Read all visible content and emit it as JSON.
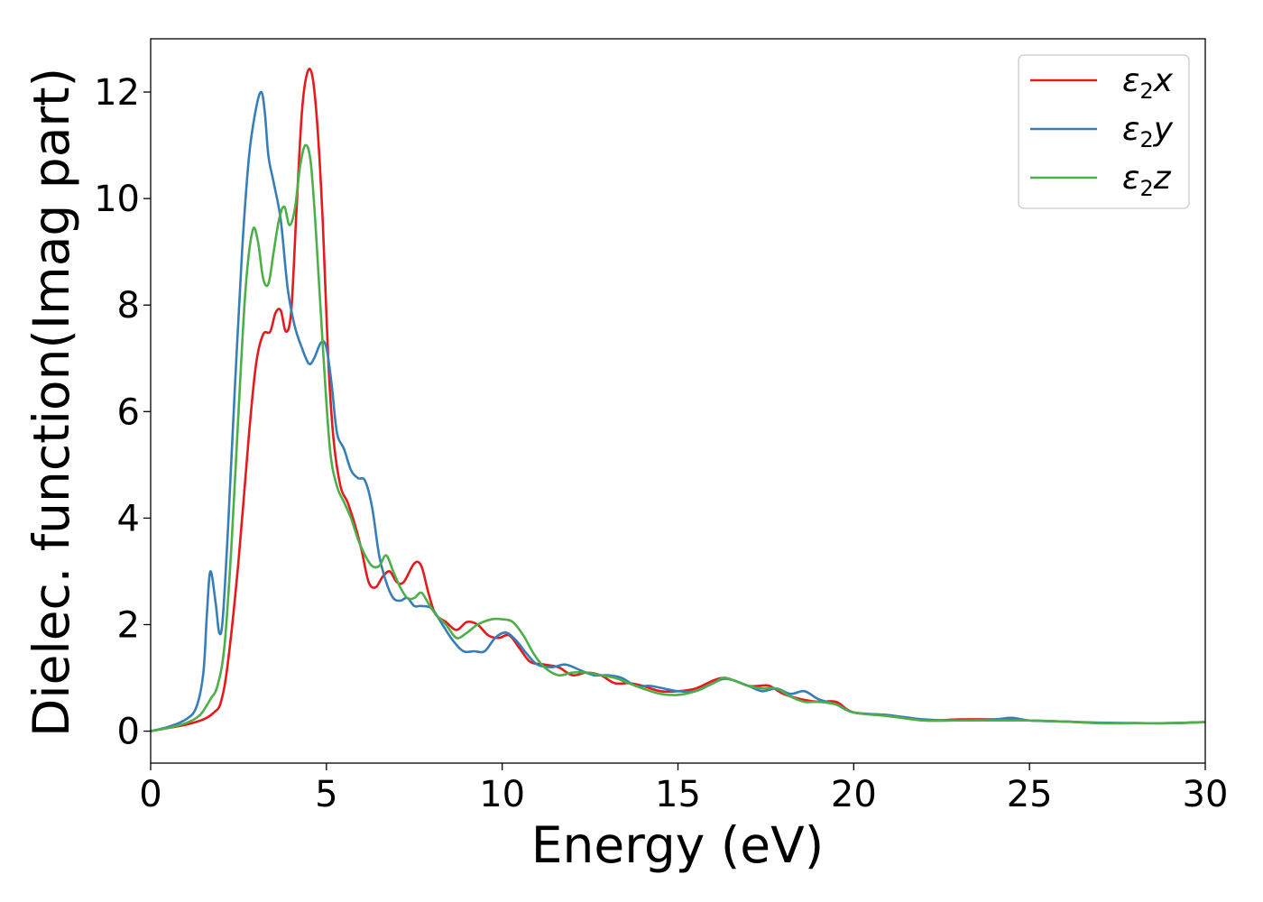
{
  "chart_data": {
    "type": "line",
    "xlabel": "Energy (eV)",
    "ylabel": "Dielec. function(Imag part)",
    "xlim": [
      0,
      30
    ],
    "ylim": [
      -0.6,
      13.0
    ],
    "xticks": [
      0,
      5,
      10,
      15,
      20,
      25,
      30
    ],
    "yticks": [
      0,
      2,
      4,
      6,
      8,
      10,
      12
    ],
    "grid": false,
    "legend_position": "top-right",
    "legend": [
      {
        "symbol": "ε",
        "sub": "2",
        "var": "x",
        "color": "#e41a1c"
      },
      {
        "symbol": "ε",
        "sub": "2",
        "var": "y",
        "color": "#377eb8"
      },
      {
        "symbol": "ε",
        "sub": "2",
        "var": "z",
        "color": "#4daf4a"
      }
    ],
    "series": [
      {
        "color": "#e41a1c",
        "x": [
          0,
          0.5,
          1.0,
          1.5,
          1.8,
          2.0,
          2.2,
          2.5,
          2.8,
          3.0,
          3.2,
          3.4,
          3.55,
          3.7,
          3.85,
          4.0,
          4.15,
          4.3,
          4.45,
          4.6,
          4.75,
          4.9,
          5.05,
          5.2,
          5.4,
          5.6,
          5.8,
          6.0,
          6.2,
          6.4,
          6.6,
          6.8,
          7.0,
          7.2,
          7.5,
          7.7,
          7.9,
          8.1,
          8.4,
          8.7,
          9.0,
          9.3,
          9.6,
          9.9,
          10.2,
          10.5,
          10.8,
          11.2,
          11.6,
          12.0,
          12.4,
          12.8,
          13.2,
          13.6,
          14.0,
          14.5,
          15.0,
          15.5,
          16.0,
          16.3,
          16.6,
          17.0,
          17.3,
          17.6,
          18.0,
          18.5,
          19.0,
          19.5,
          20.0,
          21.0,
          22.0,
          23.0,
          24.0,
          25.0,
          26.0,
          27.0,
          28.0,
          29.0,
          30.0
        ],
        "y": [
          0.0,
          0.06,
          0.12,
          0.22,
          0.35,
          0.55,
          1.3,
          3.2,
          5.6,
          6.9,
          7.45,
          7.5,
          7.85,
          7.9,
          7.5,
          7.9,
          9.8,
          11.6,
          12.35,
          12.3,
          11.3,
          9.5,
          7.0,
          5.5,
          4.6,
          4.3,
          3.9,
          3.4,
          2.8,
          2.7,
          2.9,
          3.0,
          2.8,
          2.8,
          3.15,
          3.1,
          2.6,
          2.2,
          2.05,
          1.9,
          2.05,
          2.0,
          1.8,
          1.75,
          1.8,
          1.55,
          1.3,
          1.25,
          1.2,
          1.05,
          1.1,
          1.05,
          0.9,
          0.9,
          0.85,
          0.75,
          0.75,
          0.8,
          0.95,
          1.0,
          0.95,
          0.85,
          0.85,
          0.85,
          0.7,
          0.6,
          0.55,
          0.55,
          0.35,
          0.3,
          0.2,
          0.22,
          0.22,
          0.2,
          0.18,
          0.15,
          0.15,
          0.15,
          0.17
        ]
      },
      {
        "color": "#377eb8",
        "x": [
          0,
          0.5,
          1.0,
          1.3,
          1.5,
          1.6,
          1.7,
          1.85,
          1.95,
          2.05,
          2.2,
          2.4,
          2.6,
          2.8,
          3.0,
          3.15,
          3.25,
          3.35,
          3.5,
          3.7,
          3.9,
          4.1,
          4.3,
          4.5,
          4.65,
          4.85,
          5.0,
          5.15,
          5.3,
          5.5,
          5.7,
          5.9,
          6.1,
          6.3,
          6.5,
          6.7,
          6.9,
          7.1,
          7.3,
          7.5,
          7.7,
          8.0,
          8.3,
          8.6,
          8.9,
          9.2,
          9.5,
          9.8,
          10.1,
          10.4,
          10.7,
          11.0,
          11.4,
          11.8,
          12.2,
          12.6,
          13.0,
          13.4,
          13.8,
          14.2,
          14.6,
          15.0,
          15.5,
          16.0,
          16.3,
          16.6,
          17.0,
          17.4,
          17.8,
          18.2,
          18.6,
          19.0,
          19.5,
          20.0,
          21.0,
          22.0,
          23.0,
          24.0,
          24.5,
          25.0,
          26.0,
          27.0,
          28.0,
          29.0,
          30.0
        ],
        "y": [
          0.0,
          0.08,
          0.22,
          0.45,
          1.1,
          2.2,
          3.0,
          2.4,
          1.85,
          2.1,
          3.8,
          6.5,
          9.0,
          10.8,
          11.7,
          12.0,
          11.6,
          10.8,
          10.3,
          9.6,
          8.3,
          7.6,
          7.2,
          6.9,
          7.0,
          7.3,
          7.2,
          6.5,
          5.6,
          5.3,
          4.9,
          4.75,
          4.7,
          4.2,
          3.3,
          2.8,
          2.5,
          2.45,
          2.5,
          2.35,
          2.35,
          2.3,
          2.0,
          1.7,
          1.5,
          1.5,
          1.5,
          1.75,
          1.85,
          1.7,
          1.45,
          1.25,
          1.2,
          1.25,
          1.15,
          1.05,
          1.05,
          1.0,
          0.85,
          0.85,
          0.8,
          0.75,
          0.75,
          0.9,
          0.98,
          0.95,
          0.85,
          0.75,
          0.8,
          0.7,
          0.75,
          0.6,
          0.5,
          0.35,
          0.3,
          0.22,
          0.2,
          0.22,
          0.25,
          0.2,
          0.18,
          0.16,
          0.15,
          0.15,
          0.17
        ]
      },
      {
        "color": "#4daf4a",
        "x": [
          0,
          0.5,
          1.0,
          1.4,
          1.7,
          1.9,
          2.1,
          2.3,
          2.5,
          2.7,
          2.9,
          3.05,
          3.2,
          3.35,
          3.5,
          3.65,
          3.8,
          3.95,
          4.1,
          4.25,
          4.4,
          4.55,
          4.7,
          4.9,
          5.1,
          5.3,
          5.5,
          5.7,
          5.9,
          6.1,
          6.3,
          6.5,
          6.7,
          6.9,
          7.1,
          7.3,
          7.5,
          7.7,
          7.9,
          8.1,
          8.4,
          8.7,
          9.0,
          9.3,
          9.7,
          10.0,
          10.3,
          10.6,
          10.9,
          11.2,
          11.6,
          12.0,
          12.4,
          12.8,
          13.2,
          13.6,
          14.0,
          14.5,
          15.0,
          15.5,
          16.0,
          16.3,
          16.6,
          17.0,
          17.4,
          17.8,
          18.2,
          18.6,
          19.0,
          19.5,
          20.0,
          21.0,
          22.0,
          23.0,
          24.0,
          25.0,
          26.0,
          27.0,
          28.0,
          29.0,
          30.0
        ],
        "y": [
          0.0,
          0.06,
          0.15,
          0.3,
          0.6,
          0.85,
          1.6,
          3.5,
          6.0,
          8.3,
          9.4,
          9.2,
          8.5,
          8.4,
          9.0,
          9.6,
          9.85,
          9.5,
          9.8,
          10.6,
          11.0,
          10.7,
          9.4,
          7.2,
          5.3,
          4.6,
          4.3,
          4.0,
          3.6,
          3.3,
          3.1,
          3.1,
          3.3,
          3.0,
          2.7,
          2.5,
          2.5,
          2.6,
          2.4,
          2.2,
          2.0,
          1.75,
          1.85,
          2.0,
          2.1,
          2.1,
          2.05,
          1.8,
          1.45,
          1.2,
          1.05,
          1.1,
          1.1,
          1.05,
          1.0,
          0.9,
          0.8,
          0.7,
          0.68,
          0.75,
          0.9,
          1.0,
          0.95,
          0.85,
          0.8,
          0.8,
          0.65,
          0.55,
          0.55,
          0.5,
          0.35,
          0.28,
          0.2,
          0.2,
          0.2,
          0.2,
          0.18,
          0.15,
          0.15,
          0.15,
          0.17
        ]
      }
    ]
  }
}
